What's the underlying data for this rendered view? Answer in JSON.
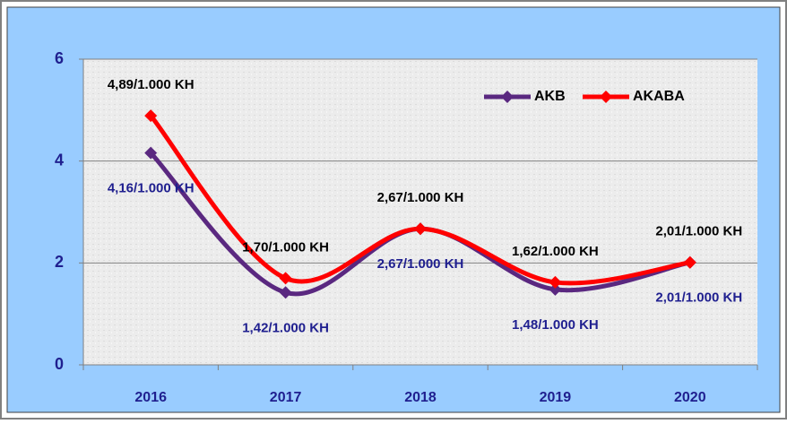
{
  "chart_data": {
    "type": "line",
    "categories": [
      "2016",
      "2017",
      "2018",
      "2019",
      "2020"
    ],
    "series": [
      {
        "name": "AKB",
        "color": "#5a2880",
        "values": [
          4.16,
          1.42,
          2.67,
          1.48,
          2.01
        ],
        "value_labels": [
          "4,16/1.000 KH",
          "1,42/1.000 KH",
          "2,67/1.000 KH",
          "1,48/1.000 KH",
          "2,01/1.000 KH"
        ]
      },
      {
        "name": "AKABA",
        "color": "#ff0000",
        "values": [
          4.89,
          1.7,
          2.67,
          1.62,
          2.01
        ],
        "value_labels": [
          "4,89/1.000 KH",
          "1,70/1.000 KH",
          "2,67/1.000 KH",
          "1,62/1.000 KH",
          "2,01/1.000 KH"
        ]
      }
    ],
    "ylim": [
      0,
      6
    ],
    "yticks": [
      0,
      2,
      4,
      6
    ],
    "grid": true,
    "legend": "top-right"
  }
}
